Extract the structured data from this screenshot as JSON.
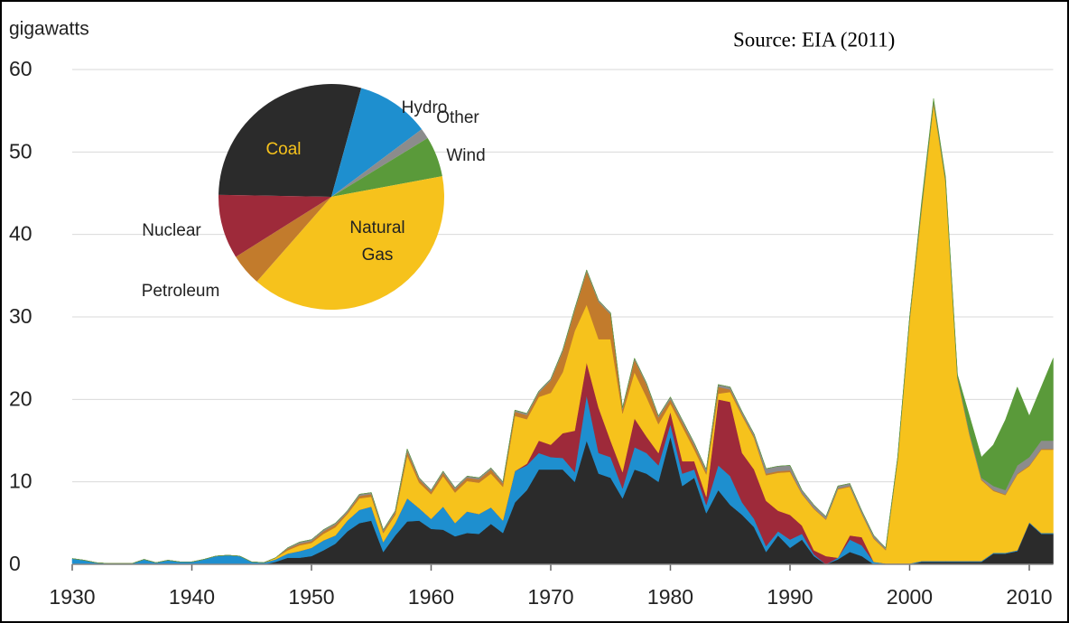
{
  "chart_data": {
    "type": "area",
    "y_label": "gigawatts",
    "annotation": "Source: EIA (2011)",
    "x": [
      1930,
      1931,
      1932,
      1933,
      1934,
      1935,
      1936,
      1937,
      1938,
      1939,
      1940,
      1941,
      1942,
      1943,
      1944,
      1945,
      1946,
      1947,
      1948,
      1949,
      1950,
      1951,
      1952,
      1953,
      1954,
      1955,
      1956,
      1957,
      1958,
      1959,
      1960,
      1961,
      1962,
      1963,
      1964,
      1965,
      1966,
      1967,
      1968,
      1969,
      1970,
      1971,
      1972,
      1973,
      1974,
      1975,
      1976,
      1977,
      1978,
      1979,
      1980,
      1981,
      1982,
      1983,
      1984,
      1985,
      1986,
      1987,
      1988,
      1989,
      1990,
      1991,
      1992,
      1993,
      1994,
      1995,
      1996,
      1997,
      1998,
      1999,
      2000,
      2001,
      2002,
      2003,
      2004,
      2005,
      2006,
      2007,
      2008,
      2009,
      2010,
      2011,
      2012
    ],
    "xlim": [
      1930,
      2012
    ],
    "xticks": [
      1930,
      1940,
      1950,
      1960,
      1970,
      1980,
      1990,
      2000,
      2010
    ],
    "ylim": [
      0,
      60
    ],
    "yticks": [
      0,
      10,
      20,
      30,
      40,
      50,
      60
    ],
    "grid": true,
    "stacked": true,
    "series": [
      {
        "name": "Coal",
        "color": "#2b2b2b",
        "share": 29,
        "values": [
          0,
          0,
          0,
          0,
          0,
          0,
          0,
          0,
          0,
          0,
          0,
          0,
          0,
          0,
          0,
          0,
          0,
          0.3,
          0.8,
          0.8,
          1,
          1.7,
          2.5,
          4,
          5,
          5.3,
          1.5,
          3.5,
          5.2,
          5.3,
          4.3,
          4.2,
          3.4,
          3.8,
          3.7,
          4.9,
          3.8,
          7.5,
          9,
          11.5,
          11.5,
          11.5,
          10,
          15,
          11,
          10.5,
          8,
          11.5,
          11,
          10,
          15.5,
          9.5,
          10.5,
          6.2,
          9,
          7.2,
          6,
          4.5,
          1.5,
          3.5,
          2,
          3,
          1,
          0,
          0.6,
          1.5,
          1,
          0,
          0,
          0,
          0,
          0.3,
          0.3,
          0.3,
          0.3,
          0.3,
          0.3,
          1.3,
          1.3,
          1.6,
          5,
          3.7,
          3.7
        ]
      },
      {
        "name": "Hydro",
        "color": "#1e8fcf",
        "share": 10.5,
        "values": [
          0.7,
          0.5,
          0.2,
          0.1,
          0.1,
          0.1,
          0.6,
          0.2,
          0.5,
          0.3,
          0.3,
          0.6,
          1,
          1.1,
          1,
          0.3,
          0.2,
          0.3,
          0.5,
          0.8,
          1,
          1.2,
          1,
          1.3,
          1.6,
          1.7,
          1.2,
          1.5,
          2.8,
          1.5,
          1.2,
          2.8,
          1.6,
          2.6,
          2.4,
          2,
          1.5,
          3.8,
          3,
          2,
          1.5,
          1.4,
          1.2,
          5.5,
          2.5,
          2.5,
          1.2,
          2.7,
          2.5,
          2,
          1.5,
          1.5,
          1,
          1,
          3,
          3.5,
          1.5,
          1,
          0.7,
          0.5,
          1,
          0.7,
          0.2,
          0,
          0.2,
          1.5,
          1.3,
          0.3,
          0.1,
          0.1,
          0.1,
          0.1,
          0.1,
          0.1,
          0.1,
          0.1,
          0.1,
          0.1,
          0.1,
          0.1,
          0.1,
          0.1,
          0.1
        ]
      },
      {
        "name": "Nuclear",
        "color": "#9e2a3a",
        "share": 9.2,
        "values": [
          0,
          0,
          0,
          0,
          0,
          0,
          0,
          0,
          0,
          0,
          0,
          0,
          0,
          0,
          0,
          0,
          0,
          0,
          0,
          0,
          0,
          0,
          0,
          0,
          0,
          0,
          0,
          0,
          0,
          0,
          0,
          0,
          0,
          0,
          0,
          0,
          0,
          0,
          0.2,
          1.5,
          1.5,
          3,
          5,
          4,
          5.5,
          2,
          2,
          3.5,
          2,
          1.5,
          1.5,
          1.5,
          1,
          1,
          8,
          9,
          6,
          6,
          5.5,
          2.5,
          3,
          1,
          0.5,
          1,
          0,
          0.5,
          1,
          0,
          0,
          0,
          0,
          0,
          0,
          0,
          0,
          0,
          0,
          0,
          0,
          0,
          0,
          0,
          0
        ]
      },
      {
        "name": "Natural Gas",
        "color": "#f6c21c",
        "share": 39.4,
        "values": [
          0,
          0,
          0,
          0,
          0,
          0,
          0,
          0,
          0,
          0,
          0,
          0,
          0,
          0,
          0,
          0,
          0,
          0.2,
          0.4,
          0.7,
          0.6,
          0.8,
          1,
          0.8,
          1.4,
          1.2,
          1.1,
          1,
          5.2,
          3.1,
          3,
          3.7,
          3.7,
          3.7,
          3.8,
          4.1,
          4.1,
          6.7,
          5.4,
          5.3,
          6.3,
          7.4,
          12.1,
          7,
          8.3,
          12.3,
          7.1,
          5.6,
          4.8,
          3.5,
          1,
          4.2,
          1.4,
          2.7,
          0.7,
          1.2,
          4.5,
          3.8,
          3.1,
          4.6,
          5.2,
          3.8,
          5,
          4.4,
          8.3,
          5.9,
          2.8,
          2.8,
          1.6,
          12.6,
          29.5,
          42.6,
          55.4,
          45.9,
          22.1,
          15.3,
          9.8,
          7.5,
          7,
          9.2,
          6.8,
          10.1,
          10.1
        ]
      },
      {
        "name": "Petroleum",
        "color": "#c27b2c",
        "share": 4.6,
        "values": [
          0,
          0,
          0,
          0,
          0,
          0,
          0,
          0,
          0,
          0,
          0,
          0,
          0,
          0,
          0,
          0,
          0,
          0,
          0.2,
          0.2,
          0.2,
          0.3,
          0.3,
          0.2,
          0.3,
          0.3,
          0.2,
          0.3,
          0.5,
          0.4,
          0.3,
          0.4,
          0.4,
          0.4,
          0.4,
          0.5,
          0.4,
          0.5,
          0.5,
          0.5,
          1.5,
          2.5,
          2.5,
          4,
          4.5,
          3,
          0.5,
          1.5,
          1.5,
          0.8,
          0.5,
          0.5,
          0.5,
          0.3,
          0.8,
          0.3,
          0.2,
          0.2,
          0.2,
          0.2,
          0.2,
          0.1,
          0.1,
          0.1,
          0.1,
          0.1,
          0.1,
          0.1,
          0.1,
          0.1,
          0.2,
          0.3,
          0.2,
          0.2,
          0.1,
          0.1,
          0.1,
          0.1,
          0.1,
          0.1,
          0.1,
          0.1,
          0.1
        ]
      },
      {
        "name": "Other",
        "color": "#8c8c8c",
        "share": 1.5,
        "values": [
          0,
          0,
          0,
          0,
          0,
          0,
          0,
          0,
          0,
          0,
          0,
          0,
          0,
          0,
          0,
          0,
          0,
          0,
          0.1,
          0.2,
          0.2,
          0.2,
          0.2,
          0.2,
          0.2,
          0.2,
          0.2,
          0.2,
          0.3,
          0.2,
          0.2,
          0.2,
          0.2,
          0.2,
          0.2,
          0.2,
          0.2,
          0.2,
          0.2,
          0.2,
          0.2,
          0.2,
          0.2,
          0.2,
          0.2,
          0.2,
          0.2,
          0.2,
          0.2,
          0.2,
          0.3,
          0.3,
          0.3,
          0.3,
          0.3,
          0.3,
          0.3,
          0.3,
          0.6,
          0.6,
          0.6,
          0.4,
          0.4,
          0.3,
          0.3,
          0.3,
          0.3,
          0.3,
          0.2,
          0.2,
          0.2,
          0.2,
          0.2,
          0.2,
          0.2,
          0.2,
          0.2,
          0.5,
          0.5,
          1,
          1,
          1,
          1
        ]
      },
      {
        "name": "Wind",
        "color": "#5a9a3a",
        "share": 5.8,
        "values": [
          0,
          0,
          0,
          0,
          0,
          0,
          0,
          0,
          0,
          0,
          0,
          0,
          0,
          0,
          0,
          0,
          0,
          0,
          0,
          0,
          0,
          0,
          0,
          0,
          0,
          0,
          0,
          0,
          0,
          0,
          0,
          0,
          0,
          0,
          0,
          0,
          0,
          0,
          0,
          0,
          0,
          0,
          0,
          0,
          0,
          0,
          0,
          0,
          0,
          0,
          0,
          0,
          0,
          0,
          0,
          0,
          0,
          0,
          0,
          0,
          0,
          0,
          0,
          0,
          0,
          0,
          0,
          0,
          0,
          0,
          0,
          0.5,
          0.3,
          0.3,
          0.2,
          2,
          2.5,
          5,
          8.5,
          9.5,
          5,
          6.5,
          10
        ]
      }
    ]
  }
}
